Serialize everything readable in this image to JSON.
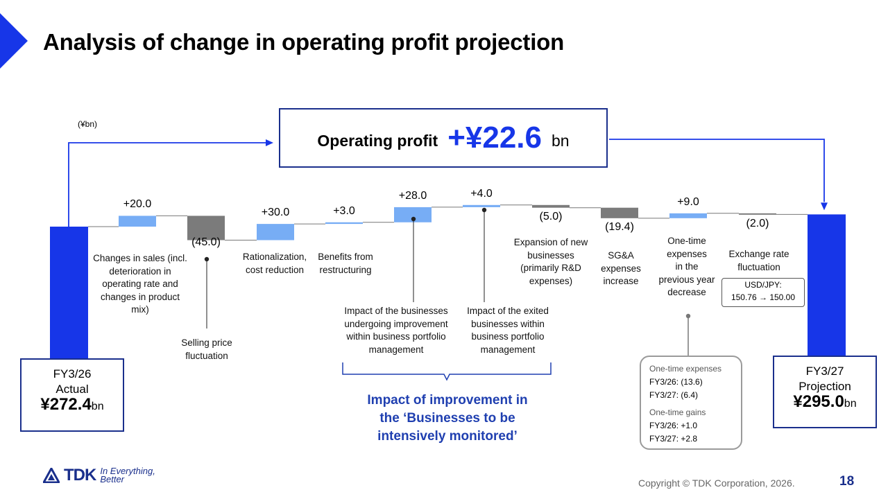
{
  "title": "Analysis of change in operating profit projection",
  "unit": "(¥bn)",
  "headline": {
    "label": "Operating profit",
    "value": "+¥22.6",
    "unit": "bn"
  },
  "start_box": {
    "line1": "FY3/26",
    "line2": "Actual",
    "value": "¥272.4",
    "unit": "bn"
  },
  "end_box": {
    "line1": "FY3/27",
    "line2": "Projection",
    "value": "¥295.0",
    "unit": "bn"
  },
  "chart_data": {
    "type": "bar",
    "subtype": "waterfall",
    "start": 272.4,
    "end": 295.0,
    "steps": [
      {
        "value": 20.0,
        "label": "+20.0",
        "lines": [
          "Changes in sales (incl.",
          "deterioration in",
          "operating rate and",
          "changes in product",
          "mix)"
        ]
      },
      {
        "value": -45.0,
        "label": "(45.0)",
        "lines": [
          "Selling price",
          "fluctuation"
        ]
      },
      {
        "value": 30.0,
        "label": "+30.0",
        "lines": [
          "Rationalization,",
          "cost reduction"
        ]
      },
      {
        "value": 3.0,
        "label": "+3.0",
        "lines": [
          "Benefits from",
          "restructuring"
        ]
      },
      {
        "value": 28.0,
        "label": "+28.0",
        "lines": [
          "Impact of the businesses",
          "undergoing improvement",
          "within business portfolio",
          "management"
        ]
      },
      {
        "value": 4.0,
        "label": "+4.0",
        "lines": [
          "Impact of the exited",
          "businesses within",
          "business portfolio",
          "management"
        ]
      },
      {
        "value": -5.0,
        "label": "(5.0)",
        "lines": [
          "Expansion of new",
          "businesses",
          "(primarily R&D",
          "expenses)"
        ]
      },
      {
        "value": -19.4,
        "label": "(19.4)",
        "lines": [
          "SG&A",
          "expenses",
          "increase"
        ]
      },
      {
        "value": 9.0,
        "label": "+9.0",
        "lines": [
          "One-time",
          "expenses",
          "in the",
          "previous year",
          "decrease"
        ]
      },
      {
        "value": -2.0,
        "label": "(2.0)",
        "lines": [
          "Exchange rate",
          "fluctuation"
        ]
      }
    ],
    "colors": {
      "total": "#1736e8",
      "increase": "#77adf5",
      "decrease": "#7b7b7b"
    }
  },
  "fx_note": {
    "line1": "USD/JPY:",
    "line2": "150.76 → 150.00"
  },
  "one_time": {
    "expenses_title": "One-time expenses",
    "expenses": [
      "FY3/26: (13.6)",
      "FY3/27: (6.4)"
    ],
    "gains_title": "One-time gains",
    "gains": [
      "FY3/26: +1.0",
      "FY3/27: +2.8"
    ]
  },
  "improvement_note": [
    "Impact of improvement in",
    "the ‘Businesses to be",
    "intensively monitored’"
  ],
  "footer": {
    "logo": "TDK",
    "tagline": [
      "In Everything,",
      "Better"
    ],
    "copyright": "Copyright © TDK Corporation, 2026.",
    "page": "18"
  }
}
